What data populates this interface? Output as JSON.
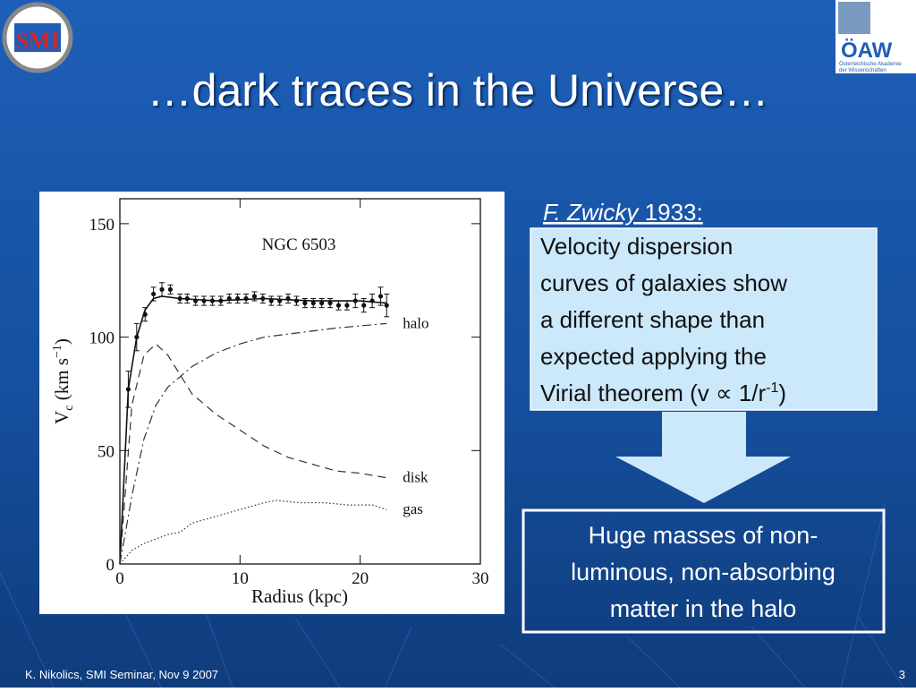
{
  "logo_left": "SMI",
  "logo_right": {
    "title": "ÖAW",
    "line1": "Österreichische Akademie",
    "line2": "der Wissenschaften"
  },
  "title": "…dark traces in the Universe…",
  "reference": {
    "author": "F. Zwicky",
    "year": " 1933:"
  },
  "statement": {
    "lines": [
      "Velocity dispersion",
      "curves of galaxies show",
      "a different shape than",
      "expected applying the"
    ],
    "last_line": {
      "text": "Virial theorem (v ",
      "symbol": "∝",
      "after": " 1/r",
      "sup": "-1",
      "end": ")"
    }
  },
  "conclusion": {
    "lines": [
      "Huge masses of non-",
      "luminous, non-absorbing",
      "matter in the halo"
    ]
  },
  "footer": {
    "left": "K. Nikolics, SMI Seminar, Nov 9 2007",
    "page": "3"
  },
  "chart_data": {
    "type": "line",
    "title": "NGC 6503",
    "xlabel": "Radius (kpc)",
    "ylabel": {
      "main": "V",
      "sub": "c",
      "unit": " (km s",
      "sup": "−1",
      "end": ")"
    },
    "xlim": [
      0,
      30
    ],
    "xticks": [
      0,
      10,
      20,
      30
    ],
    "ylim": [
      0,
      161
    ],
    "yticks": [
      0,
      50,
      100,
      150
    ],
    "series": [
      {
        "color": "#111111",
        "dash": "solid",
        "x": [
          0,
          0.7,
          1.4,
          2.1,
          2.8,
          3.5,
          5,
          8,
          12,
          16,
          20,
          22.2
        ],
        "values": [
          0,
          77,
          100,
          112,
          117,
          118,
          117,
          116,
          117,
          116,
          116,
          115
        ]
      },
      {
        "name": "halo",
        "color": "#333333",
        "dash": "dashdot",
        "x": [
          0,
          1,
          2,
          3,
          4,
          6,
          8,
          10,
          12,
          15,
          18,
          22.2
        ],
        "values": [
          0,
          30,
          55,
          70,
          78,
          87,
          93,
          97,
          100,
          102,
          104,
          106
        ]
      },
      {
        "name": "disk",
        "color": "#333333",
        "dash": "dashed",
        "x": [
          0,
          1,
          2,
          3,
          4,
          6,
          8,
          10,
          12,
          14,
          16,
          18,
          20,
          22.2
        ],
        "values": [
          0,
          70,
          92,
          97,
          92,
          75,
          66,
          59,
          52,
          47,
          44,
          41,
          40,
          38
        ]
      },
      {
        "name": "gas",
        "color": "#333333",
        "dash": "dotted",
        "x": [
          0,
          1,
          2,
          3,
          4,
          5,
          6,
          8,
          10,
          12,
          13,
          15,
          17,
          19,
          21,
          22.2
        ],
        "values": [
          0,
          6,
          9,
          11,
          13,
          14,
          18,
          21,
          24,
          27,
          28,
          27,
          27,
          26,
          26,
          24
        ]
      }
    ],
    "points": {
      "color": "#111111",
      "x": [
        0.7,
        1.4,
        2.1,
        2.8,
        3.5,
        4.2,
        5,
        5.6,
        6.3,
        7,
        7.7,
        8.4,
        9.1,
        9.8,
        10.5,
        11.2,
        11.9,
        12.6,
        13.3,
        14,
        14.7,
        15.4,
        16.1,
        16.8,
        17.5,
        18.2,
        18.9,
        19.6,
        20.3,
        21,
        21.7,
        22.2
      ],
      "values": [
        77,
        100,
        110,
        119,
        121,
        121,
        117,
        117,
        116,
        116,
        116,
        116,
        117,
        117,
        117,
        118,
        117,
        116,
        116,
        117,
        116,
        115,
        115,
        115,
        115,
        114,
        114,
        116,
        114,
        116,
        118,
        114
      ],
      "errors": [
        8,
        6,
        3,
        3,
        3,
        2,
        2,
        2,
        2,
        2,
        2,
        2,
        2,
        2,
        2,
        2,
        2,
        2,
        2,
        2,
        2,
        2,
        2,
        2,
        2,
        2,
        2,
        3,
        3,
        3,
        4,
        5
      ]
    }
  }
}
